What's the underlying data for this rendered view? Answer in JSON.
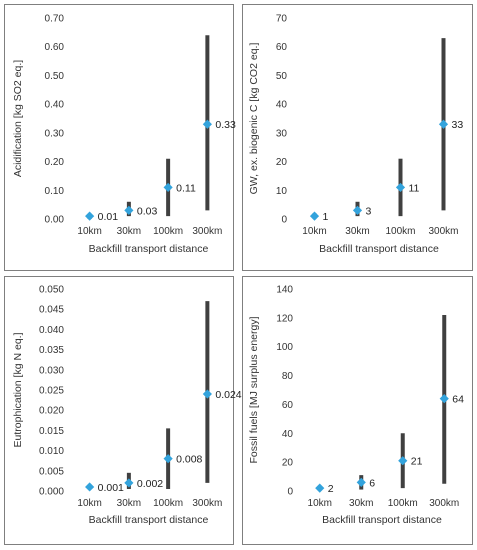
{
  "chart_data": [
    {
      "type": "scatter",
      "categories": [
        "10km",
        "30km",
        "100km",
        "300km"
      ],
      "values": [
        0.01,
        0.03,
        0.11,
        0.33
      ],
      "data_labels": [
        "0.01",
        "0.03",
        "0.11",
        "0.33"
      ],
      "error_low": [
        0.0,
        0.01,
        0.01,
        0.03
      ],
      "error_high": [
        0.01,
        0.06,
        0.21,
        0.64
      ],
      "xlabel": "Backfill transport distance",
      "ylabel": "Acidification [kg SO2 eq.]",
      "ylim": [
        0,
        0.7
      ],
      "yticks": [
        "0.00",
        "0.10",
        "0.20",
        "0.30",
        "0.40",
        "0.50",
        "0.60",
        "0.70"
      ],
      "ytick_values": [
        0,
        0.1,
        0.2,
        0.3,
        0.4,
        0.5,
        0.6,
        0.7
      ],
      "marker_color": "#33a3dc",
      "bar_color": "#404040",
      "grid": false
    },
    {
      "type": "scatter",
      "categories": [
        "10km",
        "30km",
        "100km",
        "300km"
      ],
      "values": [
        1,
        3,
        11,
        33
      ],
      "data_labels": [
        "1",
        "3",
        "11",
        "33"
      ],
      "error_low": [
        0.5,
        1,
        1,
        3
      ],
      "error_high": [
        2,
        6,
        21,
        63
      ],
      "xlabel": "Backfill transport distance",
      "ylabel": "GW, ex. biogenic C [kg CO2 eq.]",
      "ylim": [
        0,
        70
      ],
      "yticks": [
        "0",
        "10",
        "20",
        "30",
        "40",
        "50",
        "60",
        "70"
      ],
      "ytick_values": [
        0,
        10,
        20,
        30,
        40,
        50,
        60,
        70
      ],
      "marker_color": "#33a3dc",
      "bar_color": "#404040",
      "grid": false
    },
    {
      "type": "scatter",
      "categories": [
        "10km",
        "30km",
        "100km",
        "300km"
      ],
      "values": [
        0.001,
        0.002,
        0.008,
        0.024
      ],
      "data_labels": [
        "0.001",
        "0.002",
        "0.008",
        "0.024"
      ],
      "error_low": [
        0.0005,
        0.0005,
        0.0005,
        0.002
      ],
      "error_high": [
        0.0015,
        0.0045,
        0.0155,
        0.047
      ],
      "xlabel": "Backfill transport distance",
      "ylabel": "Eutrophication [kg N eq.]",
      "ylim": [
        0,
        0.05
      ],
      "yticks": [
        "0.000",
        "0.005",
        "0.010",
        "0.015",
        "0.020",
        "0.025",
        "0.030",
        "0.035",
        "0.040",
        "0.045",
        "0.050"
      ],
      "ytick_values": [
        0,
        0.005,
        0.01,
        0.015,
        0.02,
        0.025,
        0.03,
        0.035,
        0.04,
        0.045,
        0.05
      ],
      "marker_color": "#33a3dc",
      "bar_color": "#404040",
      "grid": false
    },
    {
      "type": "scatter",
      "categories": [
        "10km",
        "30km",
        "100km",
        "300km"
      ],
      "values": [
        2,
        6,
        21,
        64
      ],
      "data_labels": [
        "2",
        "6",
        "21",
        "64"
      ],
      "error_low": [
        1,
        1,
        2,
        5
      ],
      "error_high": [
        3,
        11,
        40,
        122
      ],
      "xlabel": "Backfill transport distance",
      "ylabel": "Fossil fuels [MJ surplus energy]",
      "ylim": [
        0,
        140
      ],
      "yticks": [
        "0",
        "20",
        "40",
        "60",
        "80",
        "100",
        "120",
        "140"
      ],
      "ytick_values": [
        0,
        20,
        40,
        60,
        80,
        100,
        120,
        140
      ],
      "marker_color": "#33a3dc",
      "bar_color": "#404040",
      "grid": false
    }
  ]
}
